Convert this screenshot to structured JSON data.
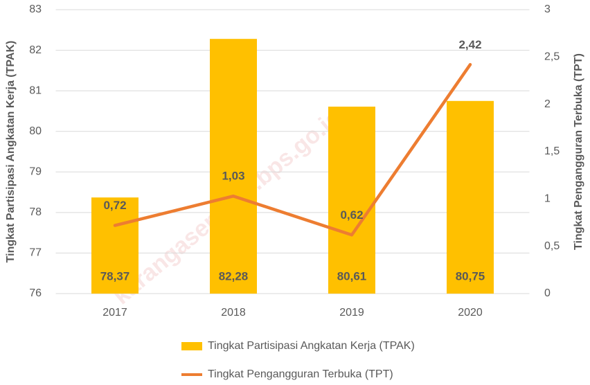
{
  "chart_data": {
    "type": "bar",
    "categories": [
      "2017",
      "2018",
      "2019",
      "2020"
    ],
    "series": [
      {
        "name": "Tingkat Partisipasi Angkatan Kerja (TPAK)",
        "type": "bar",
        "color": "#FFC000",
        "values": [
          78.37,
          82.28,
          80.61,
          80.75
        ],
        "value_labels": [
          "78,37",
          "82,28",
          "80,61",
          "80,75"
        ]
      },
      {
        "name": "Tingkat Pengangguran Terbuka (TPT)",
        "type": "line",
        "axis": "y2",
        "color": "#ED7D31",
        "values": [
          0.72,
          1.03,
          0.62,
          2.42
        ],
        "value_labels": [
          "0,72",
          "1,03",
          "0,62",
          "2,42"
        ]
      }
    ],
    "ylabel": "Tingkat Partisipasi Angkatan Kerja (TPAK)",
    "y2label": "Tingkat Pengangguran Terbuka (TPT)",
    "ylim": [
      76,
      83
    ],
    "yticks": [
      76,
      77,
      78,
      79,
      80,
      81,
      82,
      83
    ],
    "y2lim": [
      0,
      3
    ],
    "y2ticks": [
      0,
      {
        "value": 0.5,
        "label": "0,5"
      },
      1,
      {
        "value": 1.5,
        "label": "1,5"
      },
      2,
      {
        "value": 2.5,
        "label": "2,5"
      },
      3
    ],
    "grid": true,
    "legend": "bottom",
    "watermark": "karangasemkab.bps.go.id"
  }
}
